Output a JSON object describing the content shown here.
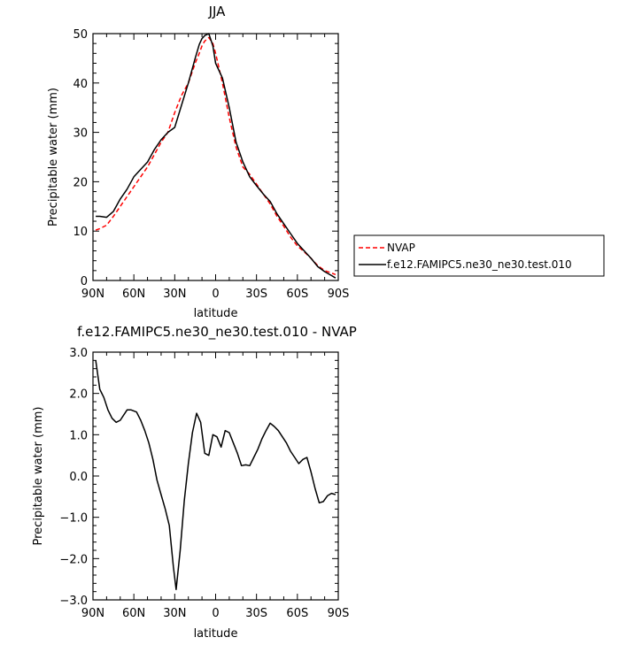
{
  "chart_data": [
    {
      "type": "line",
      "title": "JJA",
      "xlabel": "latitude",
      "ylabel": "Precipitable water (mm)",
      "xlim": [
        90,
        -90
      ],
      "ylim": [
        0,
        50
      ],
      "x_ticks": [
        90,
        60,
        30,
        0,
        -30,
        -60,
        -90
      ],
      "x_tick_labels": [
        "90N",
        "60N",
        "30N",
        "0",
        "30S",
        "60S",
        "90S"
      ],
      "y_ticks": [
        0,
        10,
        20,
        30,
        40,
        50
      ],
      "y_tick_labels": [
        "0",
        "10",
        "20",
        "30",
        "40",
        "50"
      ],
      "legend": "right",
      "series": [
        {
          "name": "NVAP",
          "color": "#ff0000",
          "dash": "dashed",
          "x": [
            88,
            85,
            80,
            75,
            70,
            65,
            60,
            55,
            50,
            45,
            40,
            35,
            30,
            25,
            20,
            15,
            12,
            10,
            8,
            5,
            2,
            0,
            -5,
            -10,
            -15,
            -20,
            -25,
            -30,
            -35,
            -40,
            -45,
            -50,
            -55,
            -60,
            -65,
            -70,
            -75,
            -80,
            -85,
            -88
          ],
          "y": [
            10.2,
            10.5,
            11.2,
            13,
            15,
            17,
            19,
            21,
            23,
            25.5,
            28,
            30,
            34,
            37.5,
            40,
            44,
            46,
            47.5,
            48.5,
            49.2,
            48,
            46,
            40,
            33,
            27,
            23,
            21.5,
            19.5,
            17.5,
            15.5,
            13,
            11,
            8.8,
            7,
            5.8,
            4.5,
            3,
            2,
            1.5,
            1.2
          ]
        },
        {
          "name": "f.e12.FAMIPC5.ne30_ne30.test.010",
          "color": "#000000",
          "dash": "solid",
          "x": [
            88,
            85,
            80,
            75,
            70,
            65,
            60,
            55,
            50,
            45,
            40,
            35,
            30,
            25,
            20,
            15,
            12,
            10,
            8,
            5,
            2,
            0,
            -5,
            -10,
            -15,
            -20,
            -25,
            -30,
            -35,
            -40,
            -45,
            -50,
            -55,
            -60,
            -65,
            -70,
            -75,
            -80,
            -85,
            -88
          ],
          "y": [
            13,
            13,
            12.8,
            14,
            16.5,
            18.5,
            21,
            22.5,
            24,
            26.5,
            28.5,
            30,
            31,
            35.5,
            40,
            45,
            47.8,
            49,
            49.6,
            50,
            47.5,
            44,
            41,
            35,
            28,
            24,
            21,
            19.2,
            17.5,
            16,
            13.5,
            11.5,
            9.5,
            7.5,
            6,
            4.5,
            2.8,
            1.8,
            1,
            0.5
          ]
        }
      ]
    },
    {
      "type": "line",
      "title": "f.e12.FAMIPC5.ne30_ne30.test.010 - NVAP",
      "xlabel": "latitude",
      "ylabel": "Precipitable water (mm)",
      "xlim": [
        90,
        -90
      ],
      "ylim": [
        -3,
        3
      ],
      "x_ticks": [
        90,
        60,
        30,
        0,
        -30,
        -60,
        -90
      ],
      "x_tick_labels": [
        "90N",
        "60N",
        "30N",
        "0",
        "30S",
        "60S",
        "90S"
      ],
      "y_ticks": [
        -3,
        -2,
        -1,
        0,
        1,
        2,
        3
      ],
      "y_tick_labels": [
        "−3.0",
        "−2.0",
        "−1.0",
        "0.0",
        "1.0",
        "2.0",
        "3.0"
      ],
      "series": [
        {
          "color": "#000000",
          "dash": "solid",
          "x": [
            88,
            85,
            82,
            79,
            76,
            73,
            70,
            65,
            62,
            58,
            55,
            52,
            49,
            46,
            43,
            40,
            37,
            34,
            31,
            29,
            26,
            23,
            20,
            17,
            14,
            11,
            8,
            5,
            2,
            -1,
            -4,
            -7,
            -10,
            -13,
            -16,
            -19,
            -22,
            -25,
            -28,
            -31,
            -34,
            -37,
            -40,
            -43,
            -46,
            -49,
            -52,
            -55,
            -58,
            -61,
            -64,
            -67,
            -70,
            -73,
            -76,
            -79,
            -82,
            -85,
            -88
          ],
          "y": [
            2.8,
            2.1,
            1.9,
            1.6,
            1.4,
            1.3,
            1.35,
            1.6,
            1.6,
            1.55,
            1.35,
            1.1,
            0.8,
            0.4,
            -0.1,
            -0.45,
            -0.8,
            -1.2,
            -2.2,
            -2.75,
            -1.8,
            -0.6,
            0.3,
            1.05,
            1.52,
            1.3,
            0.55,
            0.5,
            1.0,
            0.95,
            0.7,
            1.1,
            1.05,
            0.8,
            0.55,
            0.25,
            0.27,
            0.25,
            0.45,
            0.65,
            0.9,
            1.1,
            1.28,
            1.2,
            1.1,
            0.95,
            0.8,
            0.6,
            0.45,
            0.3,
            0.4,
            0.45,
            0.1,
            -0.3,
            -0.65,
            -0.62,
            -0.48,
            -0.42,
            -0.45
          ]
        }
      ]
    }
  ]
}
